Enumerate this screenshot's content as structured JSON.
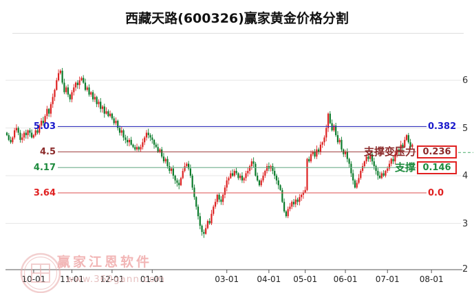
{
  "window": {
    "background": "#ffffff"
  },
  "title": "西藏天路(600326)赢家黄金价格分割",
  "watermark": {
    "brand": "赢家江恩软件",
    "site": "www.360gann.com"
  },
  "chart_data": {
    "type": "candlestick",
    "title": "西藏天路(600326)赢家黄金价格分割",
    "symbol": "600326",
    "stock_name": "西藏天路",
    "tool_name": "赢家黄金价格分割",
    "y_axis": {
      "tick_labels": [
        "6",
        "5",
        "4",
        "3",
        "2"
      ],
      "tick_values": [
        6,
        5,
        4,
        3,
        2
      ],
      "range": [
        2,
        6.4
      ],
      "grid": true
    },
    "x_ticks": [
      {
        "label": "10-01",
        "index": 14
      },
      {
        "label": "11-01",
        "index": 34
      },
      {
        "label": "12-01",
        "index": 55
      },
      {
        "label": "01-01",
        "index": 76
      },
      {
        "label": "03-01",
        "index": 115
      },
      {
        "label": "04-01",
        "index": 137
      },
      {
        "label": "05-01",
        "index": 156
      },
      {
        "label": "06-01",
        "index": 177
      },
      {
        "label": "07-01",
        "index": 199
      },
      {
        "label": "08-01",
        "index": 222
      }
    ],
    "first_open": 4.9,
    "closes": [
      4.85,
      4.75,
      4.7,
      4.8,
      4.95,
      5.0,
      4.9,
      4.75,
      4.8,
      4.9,
      4.85,
      4.95,
      4.9,
      4.8,
      4.85,
      4.95,
      4.9,
      5.05,
      5.15,
      5.1,
      5.25,
      5.4,
      5.3,
      5.5,
      5.65,
      5.8,
      6.0,
      6.15,
      6.2,
      5.95,
      5.75,
      5.85,
      5.7,
      5.6,
      5.75,
      5.85,
      5.95,
      5.9,
      6.0,
      6.05,
      5.95,
      5.8,
      5.85,
      5.7,
      5.75,
      5.6,
      5.65,
      5.5,
      5.55,
      5.4,
      5.45,
      5.3,
      5.35,
      5.25,
      5.3,
      5.2,
      5.1,
      5.15,
      5.0,
      4.9,
      4.95,
      4.8,
      4.75,
      4.7,
      4.75,
      4.65,
      4.6,
      4.55,
      4.6,
      4.55,
      4.6,
      4.7,
      4.8,
      4.9,
      4.85,
      4.8,
      4.75,
      4.65,
      4.6,
      4.5,
      4.55,
      4.4,
      4.3,
      4.35,
      4.2,
      4.1,
      4.15,
      4.0,
      3.9,
      3.85,
      3.8,
      3.95,
      4.1,
      4.2,
      4.25,
      4.15,
      4.0,
      3.75,
      3.55,
      3.35,
      3.15,
      2.95,
      2.82,
      2.78,
      2.9,
      3.05,
      3.0,
      3.2,
      3.35,
      3.45,
      3.6,
      3.5,
      3.45,
      3.6,
      3.75,
      3.9,
      3.95,
      4.05,
      4.0,
      4.1,
      4.05,
      3.95,
      4.0,
      3.9,
      3.95,
      4.05,
      4.1,
      4.2,
      4.3,
      4.25,
      4.0,
      3.9,
      3.8,
      3.9,
      4.0,
      4.1,
      4.2,
      4.15,
      4.2,
      4.1,
      4.0,
      3.9,
      3.8,
      3.7,
      3.45,
      3.25,
      3.15,
      3.3,
      3.35,
      3.45,
      3.4,
      3.5,
      3.45,
      3.55,
      3.6,
      3.65,
      3.7,
      4.35,
      4.3,
      4.45,
      4.5,
      4.4,
      4.55,
      4.5,
      4.65,
      4.7,
      4.8,
      5.0,
      5.3,
      5.1,
      4.95,
      5.05,
      4.85,
      4.7,
      4.75,
      4.55,
      4.45,
      4.5,
      4.35,
      4.25,
      4.05,
      3.9,
      3.75,
      3.85,
      3.95,
      4.1,
      4.2,
      4.3,
      4.4,
      4.35,
      4.45,
      4.3,
      4.2,
      4.1,
      4.0,
      3.95,
      4.05,
      4.0,
      4.1,
      4.15,
      4.25,
      4.35,
      4.3,
      4.45,
      4.55,
      4.5,
      4.65,
      4.6,
      4.75,
      4.85,
      4.7,
      4.6,
      4.65
    ],
    "price_lines": [
      {
        "price": 5.03,
        "left_label": "5.03",
        "right_label": "0.382",
        "line_color": "#3333bb",
        "label_color": "#1a1acc",
        "boxed": false,
        "dashed_tail": false
      },
      {
        "price": 4.5,
        "left_label": "4.5",
        "right_label": "0.236",
        "line_color": "#993333",
        "label_color": "#8b2a2a",
        "boxed": true,
        "dashed_tail": true
      },
      {
        "price": 4.17,
        "left_label": "4.17",
        "right_label": "0.146",
        "line_color": "#6fae8c",
        "label_color": "#1e8b3e",
        "boxed": true,
        "dashed_tail": false
      },
      {
        "price": 3.64,
        "left_label": "3.64",
        "right_label": "0.0",
        "line_color": "#e06060",
        "label_color": "#e02020",
        "boxed": false,
        "dashed_tail": false
      }
    ],
    "annotations": [
      {
        "text": "支撑变压力",
        "color": "#8b2a2a",
        "price": 4.5
      },
      {
        "text": "支撑",
        "color": "#1e8b3e",
        "price": 4.17
      }
    ],
    "colors": {
      "up_candle": "#dd2222",
      "down_candle": "#0b7b2b",
      "grid": "#e6e6e6",
      "axis": "#555555",
      "box_border": "#e02020",
      "dashed_tail": "#44aa66"
    }
  }
}
